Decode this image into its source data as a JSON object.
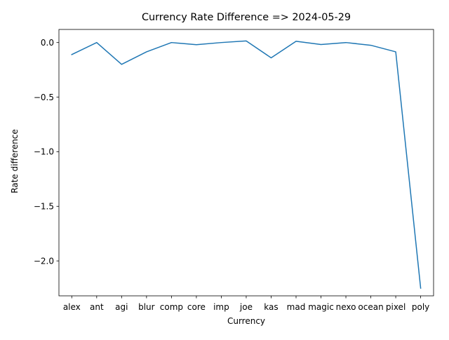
{
  "chart_data": {
    "type": "line",
    "title": "Currency Rate Difference => 2024-05-29",
    "xlabel": "Currency",
    "ylabel": "Rate difference",
    "categories": [
      "alex",
      "ant",
      "agi",
      "blur",
      "comp",
      "core",
      "imp",
      "joe",
      "kas",
      "mad",
      "magic",
      "nexo",
      "ocean",
      "pixel",
      "poly"
    ],
    "series": [
      {
        "values": [
          -0.11,
          0.0,
          -0.2,
          -0.085,
          0.0,
          -0.02,
          0.0,
          0.015,
          -0.14,
          0.012,
          -0.018,
          0.0,
          -0.025,
          -0.085,
          -2.25
        ],
        "color": "#1f77b4"
      }
    ],
    "ylim": [
      -2.32,
      0.12
    ],
    "yticks": [
      0.0,
      -0.5,
      -1.0,
      -1.5,
      -2.0
    ],
    "ytick_labels": [
      "0.0",
      "−0.5",
      "−1.0",
      "−1.5",
      "−2.0"
    ],
    "grid": false,
    "legend": "none"
  }
}
